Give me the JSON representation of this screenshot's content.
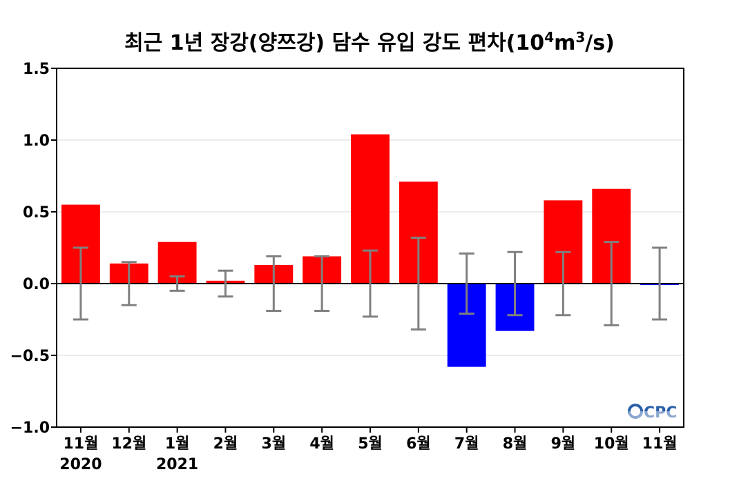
{
  "chart_data": {
    "type": "bar",
    "title": "최근 1년 장강(양쯔강) 담수 유입 강도 편차(10⁴m³/s)",
    "title_parts": {
      "main": "최근 1년 장강(양쯔강) 담수 유입 강도 편차(10",
      "exp1": "4",
      "mid": "m",
      "exp2": "3",
      "end": "/s)"
    },
    "xlabel": "",
    "ylabel": "",
    "ylim": [
      -1.0,
      1.5
    ],
    "yticks": [
      -1.0,
      -0.5,
      0.0,
      0.5,
      1.0,
      1.5
    ],
    "ytick_labels": [
      "−1.0",
      "−0.5",
      "0.0",
      "0.5",
      "1.0",
      "1.5"
    ],
    "grid": true,
    "categories": [
      "11월",
      "12월",
      "1월",
      "2월",
      "3월",
      "4월",
      "5월",
      "6월",
      "7월",
      "8월",
      "9월",
      "10월",
      "11월"
    ],
    "year_labels": [
      "2020",
      "",
      "2021",
      "",
      "",
      "",
      "",
      "",
      "",
      "",
      "",
      "",
      ""
    ],
    "values": [
      0.55,
      0.14,
      0.29,
      0.02,
      0.13,
      0.19,
      1.04,
      0.71,
      -0.58,
      -0.33,
      0.58,
      0.66,
      -0.01
    ],
    "error_bounds": [
      0.25,
      0.15,
      0.05,
      0.09,
      0.19,
      0.19,
      0.23,
      0.32,
      0.21,
      0.22,
      0.22,
      0.29,
      0.25
    ],
    "colors": {
      "positive": "#ff0000",
      "negative": "#0000ff",
      "error_bar": "#808080",
      "zero_line": "#000000",
      "grid": "#d9d9d9"
    }
  },
  "logo": {
    "text": "CPC",
    "colors": [
      "#2a5fa8",
      "#4fb3e0"
    ]
  }
}
